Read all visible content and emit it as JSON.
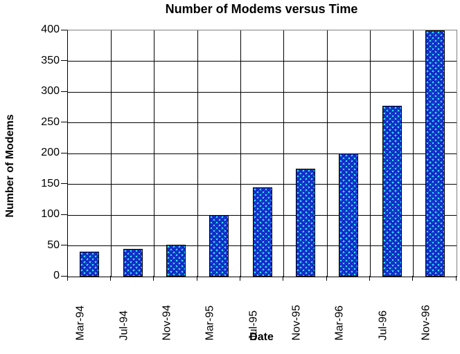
{
  "chart_data": {
    "type": "bar",
    "title": "Number of Modems versus Time",
    "xlabel": "Date",
    "ylabel": "Number of Modems",
    "categories": [
      "Mar-94",
      "Jul-94",
      "Nov-94",
      "Mar-95",
      "Jul-95",
      "Nov-95",
      "Mar-96",
      "Jul-96",
      "Nov-96"
    ],
    "values": [
      40,
      45,
      52,
      100,
      145,
      175,
      200,
      277,
      400
    ],
    "ylim": [
      0,
      400
    ],
    "ytick_step": 50,
    "ytick_labels": [
      "0",
      "50",
      "100",
      "150",
      "200",
      "250",
      "300",
      "350",
      "400"
    ],
    "grid": "both",
    "legend": "none",
    "colors": {
      "bar_fill": "#2444e4",
      "bar_dot": "#22eaff",
      "bar_checker": "#0a1cae",
      "bar_border": "#000000",
      "gridline": "#000000",
      "plot_border": "#808080",
      "background": "#ffffff",
      "text": "#000000"
    }
  }
}
